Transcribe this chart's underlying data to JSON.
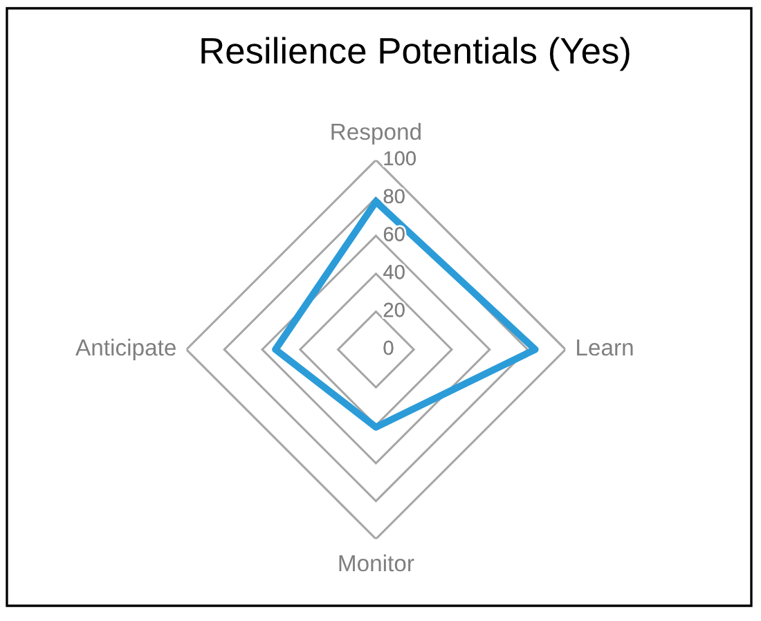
{
  "chart_data": {
    "type": "radar",
    "title": "Resilience Potentials (Yes)",
    "categories": [
      "Respond",
      "Learn",
      "Monitor",
      "Anticipate"
    ],
    "series": [
      {
        "color": "#2b9cd8",
        "values": [
          78,
          84,
          41,
          53
        ]
      }
    ],
    "ylim": [
      0,
      100
    ],
    "yticks": [
      0,
      20,
      40,
      60,
      80,
      100
    ],
    "grid": true,
    "line_style": "solid"
  }
}
